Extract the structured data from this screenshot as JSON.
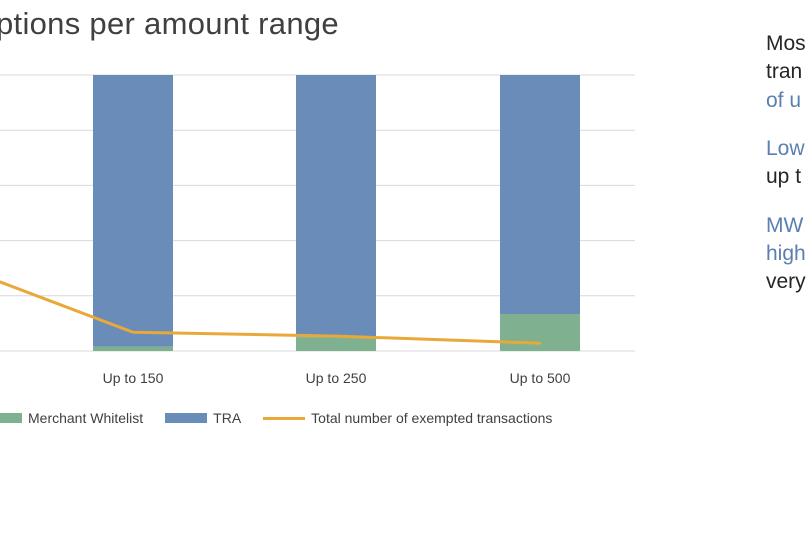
{
  "colors": {
    "merchant_whitelist": "#7fb08f",
    "tra": "#6a8cb8",
    "total_line": "#e8a93a",
    "gridline": "#d9d9d9",
    "side_blue": "#5a7fb0",
    "side_dark": "#262626"
  },
  "chart_data": {
    "type": "bar",
    "title": "ptions per amount range",
    "categories": [
      "Up to 150",
      "Up to 250",
      "Up to 500"
    ],
    "series": [
      {
        "name": "Merchant Whitelist",
        "kind": "stacked-bar",
        "values": [
          0.8,
          2.5,
          6.7
        ]
      },
      {
        "name": "TRA",
        "kind": "stacked-bar",
        "values": [
          49.2,
          47.5,
          43.3
        ]
      },
      {
        "name": "Total number of exempted transactions",
        "kind": "line",
        "values": [
          3.4,
          2.7,
          1.4
        ]
      }
    ],
    "ylim": [
      0,
      50
    ],
    "grid": true,
    "legend_position": "bottom"
  },
  "legend": {
    "items": [
      {
        "label": "Merchant Whitelist",
        "style": "rect"
      },
      {
        "label": "TRA",
        "style": "rect"
      },
      {
        "label": "Total number of exempted transactions",
        "style": "line"
      }
    ]
  },
  "side_text": {
    "block1": {
      "line1": "Mos",
      "line2": "tran",
      "line3": "of u"
    },
    "block2": {
      "line1": "Low",
      "line2": "up t"
    },
    "block3": {
      "line1": "MW",
      "line2": "high",
      "line3": "very"
    }
  }
}
